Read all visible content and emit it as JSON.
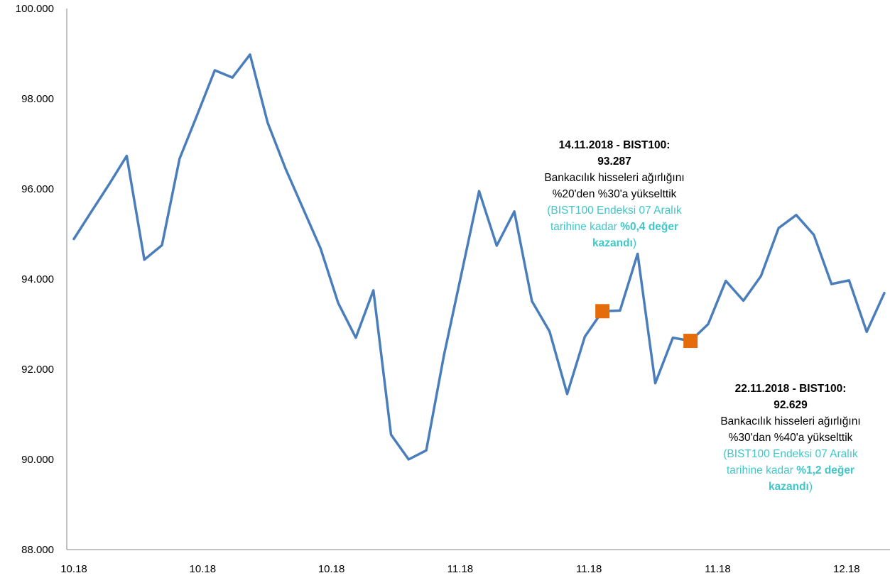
{
  "chart_data": {
    "type": "line",
    "y_ticks": [
      "100.000",
      "98.000",
      "96.000",
      "94.000",
      "92.000",
      "90.000",
      "88.000"
    ],
    "x_ticks": [
      "10.18",
      "10.18",
      "10.18",
      "11.18",
      "11.18",
      "11.18",
      "12.18"
    ],
    "ylim": [
      88000,
      100000
    ],
    "grid": false,
    "line_color": "#4a7ebb",
    "marker_color": "#e46c0a",
    "series": [
      {
        "values": [
          94890,
          95500,
          96100,
          96730,
          94430,
          94750,
          96670,
          97640,
          98630,
          98470,
          98980,
          97470,
          96460,
          95570,
          94680,
          93470,
          92700,
          93750,
          90550,
          90000,
          90200,
          92300,
          94120,
          95950,
          94740,
          95500,
          93510,
          92840,
          91450,
          92720,
          93287,
          93300,
          94560,
          91690,
          92700,
          92629,
          93000,
          93960,
          93520,
          94070,
          95130,
          95420,
          94980,
          93890,
          93970,
          92830,
          93690
        ]
      }
    ],
    "markers": [
      {
        "index": 30,
        "value": 93287
      },
      {
        "index": 35,
        "value": 92629
      }
    ],
    "annotations": [
      {
        "title_line1": "14.11.2018 - BIST100:",
        "title_line2": "93.287",
        "body_line1": "Bankacılık hisseleri ağırlığını",
        "body_line2": "%20'den %30'a yükselttik",
        "hl_line1": "(BIST100 Endeksi 07 Aralık",
        "hl_line2_pre": "tarihine kadar ",
        "hl_line2_bold": "%0,4 değer",
        "hl_line3_bold": "kazandı",
        "hl_line3_post": ")"
      },
      {
        "title_line1": "22.11.2018 - BIST100:",
        "title_line2": "92.629",
        "body_line1": "Bankacılık hisseleri ağırlığını",
        "body_line2": "%30'dan %40'a yükselttik",
        "hl_line1": "(BIST100 Endeksi 07 Aralık",
        "hl_line2_pre": "tarihine kadar ",
        "hl_line2_bold": "%1,2 değer",
        "hl_line3_bold": "kazandı",
        "hl_line3_post": ")"
      }
    ]
  }
}
